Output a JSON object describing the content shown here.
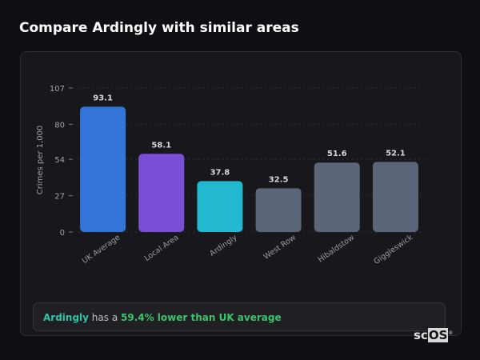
{
  "header": {
    "title": "Compare Ardingly with similar areas"
  },
  "chart_data": {
    "type": "bar",
    "title": "",
    "xlabel": "",
    "ylabel": "Crimes per 1,000",
    "ylim": [
      0,
      107
    ],
    "yticks": [
      0,
      27,
      54,
      80,
      107
    ],
    "categories": [
      "UK Average",
      "Local Area",
      "Ardingly",
      "West Row",
      "Hibaldstow",
      "Giggleswick"
    ],
    "values": [
      93.1,
      58.1,
      37.8,
      32.5,
      51.6,
      52.1
    ],
    "colors": [
      "#3374d9",
      "#7a4fd6",
      "#22b8d0",
      "#5b6478",
      "#5b6478",
      "#5b6478"
    ],
    "grid": true
  },
  "summary": {
    "place": "Ardingly",
    "middle": " has a ",
    "value": "59.4% lower than UK average"
  },
  "logo": {
    "text_a": "sc",
    "text_b": "OS",
    "mark": "®"
  }
}
